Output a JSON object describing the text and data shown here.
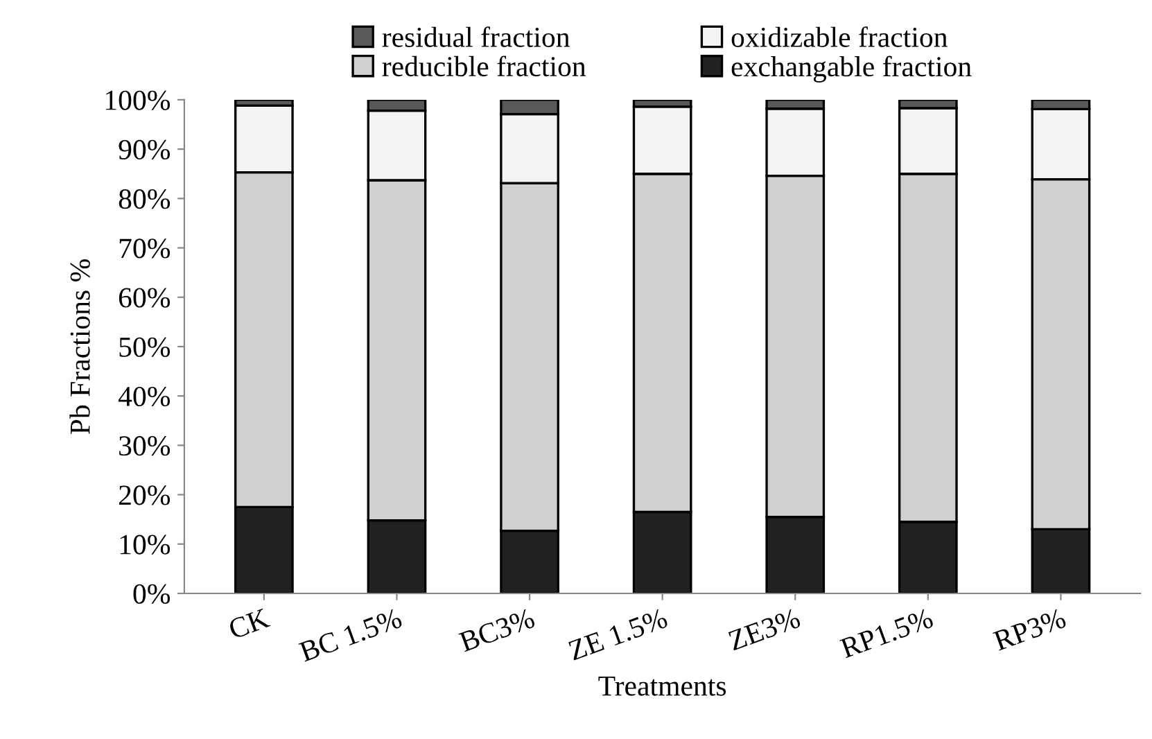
{
  "chart_data": {
    "type": "bar",
    "stacked": true,
    "xlabel": "Treatments",
    "ylabel": "Pb Fractions %",
    "categories": [
      "CK",
      "BC 1.5%",
      "BC3%",
      "ZE 1.5%",
      "ZE3%",
      "RP1.5%",
      "RP3%"
    ],
    "series": [
      {
        "name": "exchangable fraction",
        "color": "#222222",
        "values": [
          17.5,
          14.8,
          12.7,
          16.5,
          15.5,
          14.5,
          13.0
        ]
      },
      {
        "name": "reducible fraction",
        "color": "#d0d1cf",
        "values": [
          67.8,
          68.9,
          70.4,
          68.5,
          69.1,
          70.5,
          70.9
        ]
      },
      {
        "name": "oxidizable fraction",
        "color": "#f3f3f3",
        "values": [
          13.5,
          14.1,
          14.0,
          13.6,
          13.6,
          13.3,
          14.2
        ]
      },
      {
        "name": "residual fraction",
        "color": "#595959",
        "values": [
          1.2,
          2.2,
          2.9,
          1.4,
          1.8,
          1.7,
          1.9
        ]
      }
    ],
    "ylim": [
      0,
      100
    ],
    "yticks": [
      {
        "value": 0,
        "label": "0%"
      },
      {
        "value": 10,
        "label": "10%"
      },
      {
        "value": 20,
        "label": "20%"
      },
      {
        "value": 30,
        "label": "30%"
      },
      {
        "value": 40,
        "label": "40%"
      },
      {
        "value": 50,
        "label": "50%"
      },
      {
        "value": 60,
        "label": "60%"
      },
      {
        "value": 70,
        "label": "70%"
      },
      {
        "value": 80,
        "label": "80%"
      },
      {
        "value": 90,
        "label": "90%"
      },
      {
        "value": 100,
        "label": "100%"
      }
    ],
    "grid": false,
    "legend": "top"
  }
}
